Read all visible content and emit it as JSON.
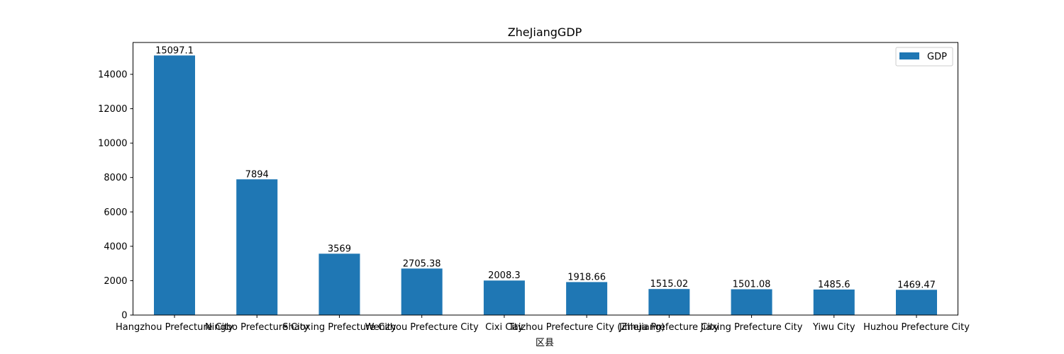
{
  "chart_data": {
    "type": "bar",
    "title": "ZheJiangGDP",
    "xlabel": "区县",
    "ylabel": "",
    "categories": [
      "Hangzhou Prefecture City",
      "Ningbo Prefecture City",
      "Shaoxing Prefecture City",
      "Wenzhou Prefecture City",
      "Cixi City",
      "Taizhou Prefecture City (Zhejiang)",
      "Jinhua Prefecture City",
      "Jiaxing Prefecture City",
      "Yiwu City",
      "Huzhou Prefecture City"
    ],
    "series": [
      {
        "name": "GDP",
        "values": [
          15097.1,
          7894,
          3569,
          2705.38,
          2008.3,
          1918.66,
          1515.02,
          1501.08,
          1485.6,
          1469.47
        ],
        "value_labels": [
          "15097.1",
          "7894",
          "3569",
          "2705.38",
          "2008.3",
          "1918.66",
          "1515.02",
          "1501.08",
          "1485.6",
          "1469.47"
        ],
        "color": "#1f77b4"
      }
    ],
    "yticks": [
      0,
      2000,
      4000,
      6000,
      8000,
      10000,
      12000,
      14000
    ],
    "ylim": [
      0,
      15852
    ],
    "legend_position": "top-right",
    "grid": false
  }
}
